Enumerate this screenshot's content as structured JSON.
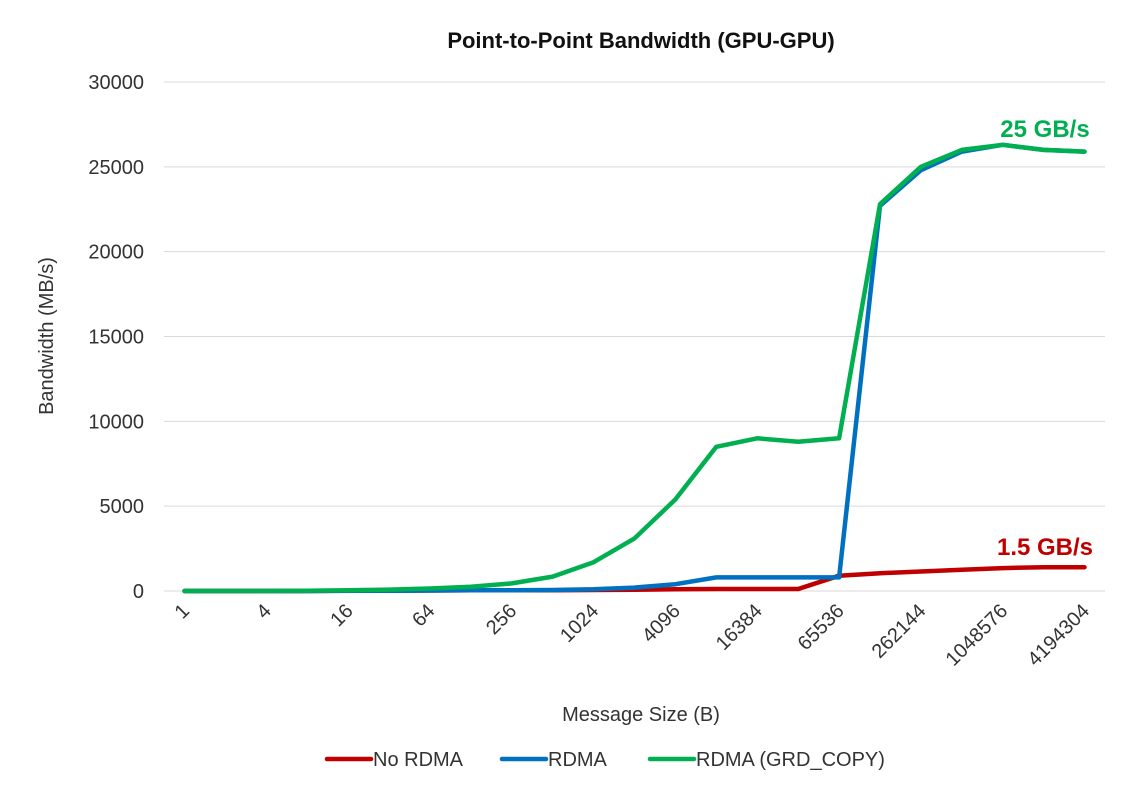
{
  "chart_data": {
    "type": "line",
    "title": "Point-to-Point Bandwidth (GPU-GPU)",
    "xlabel": "Message Size (B)",
    "ylabel": "Bandwidth (MB/s)",
    "ylim": [
      0,
      30000
    ],
    "yticks": [
      "0",
      "5000",
      "10000",
      "15000",
      "20000",
      "25000",
      "30000"
    ],
    "x": [
      "1",
      "2",
      "4",
      "8",
      "16",
      "32",
      "64",
      "128",
      "256",
      "512",
      "1024",
      "2048",
      "4096",
      "8192",
      "16384",
      "32768",
      "65536",
      "131072",
      "262144",
      "524288",
      "1048576",
      "2097152",
      "4194304"
    ],
    "xtick_labels": [
      "1",
      "4",
      "16",
      "64",
      "256",
      "1024",
      "4096",
      "16384",
      "65536",
      "262144",
      "1048576",
      "4194304"
    ],
    "grid": "horizontal",
    "legend_position": "bottom",
    "series": [
      {
        "name": "No RDMA",
        "color": "#c00000",
        "values": [
          0,
          0,
          0,
          0,
          10,
          20,
          30,
          40,
          40,
          50,
          60,
          70,
          100,
          120,
          120,
          120,
          900,
          1050,
          1150,
          1250,
          1350,
          1400,
          1400
        ]
      },
      {
        "name": "RDMA",
        "color": "#0070c0",
        "values": [
          0,
          0,
          0,
          0,
          10,
          20,
          30,
          40,
          50,
          60,
          100,
          200,
          400,
          800,
          800,
          800,
          800,
          22700,
          24800,
          25900,
          26300,
          26000,
          25900
        ]
      },
      {
        "name": "RDMA (GRD_COPY)",
        "color": "#00b050",
        "values": [
          0,
          0,
          0,
          10,
          50,
          80,
          150,
          250,
          450,
          850,
          1700,
          3100,
          5400,
          8500,
          9000,
          8800,
          9000,
          22800,
          25000,
          26000,
          26300,
          26000,
          25900
        ]
      }
    ],
    "annotations": [
      {
        "text": "25 GB/s",
        "color": "#00b050"
      },
      {
        "text": "1.5 GB/s",
        "color": "#c00000"
      }
    ]
  }
}
